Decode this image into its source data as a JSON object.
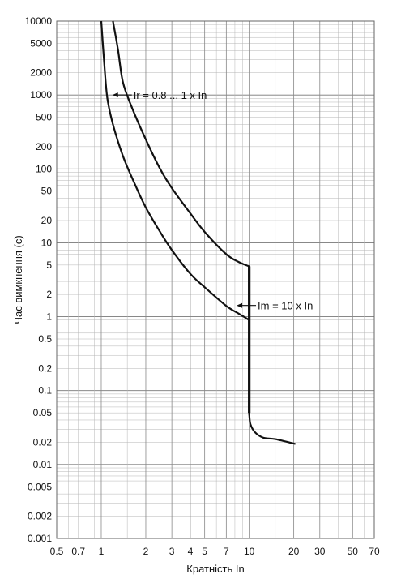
{
  "chart_data": {
    "type": "line",
    "title": "",
    "xlabel": "Кратність In",
    "ylabel": "Час вимкнення (с)",
    "x_scale": "log",
    "y_scale": "log",
    "xlim": [
      0.5,
      70
    ],
    "ylim": [
      0.001,
      10000
    ],
    "grid": true,
    "x_ticks": [
      {
        "value": 0.5,
        "label": "0.5"
      },
      {
        "value": 0.7,
        "label": "0.7"
      },
      {
        "value": 1,
        "label": "1"
      },
      {
        "value": 2,
        "label": "2"
      },
      {
        "value": 3,
        "label": "3"
      },
      {
        "value": 4,
        "label": "4"
      },
      {
        "value": 5,
        "label": "5"
      },
      {
        "value": 7,
        "label": "7"
      },
      {
        "value": 10,
        "label": "10"
      },
      {
        "value": 20,
        "label": "20"
      },
      {
        "value": 30,
        "label": "30"
      },
      {
        "value": 50,
        "label": "50"
      },
      {
        "value": 70,
        "label": "70"
      }
    ],
    "y_ticks": [
      {
        "value": 10000,
        "label": "10000"
      },
      {
        "value": 5000,
        "label": "5000"
      },
      {
        "value": 2000,
        "label": "2000"
      },
      {
        "value": 1000,
        "label": "1000"
      },
      {
        "value": 500,
        "label": "500"
      },
      {
        "value": 200,
        "label": "200"
      },
      {
        "value": 100,
        "label": "100"
      },
      {
        "value": 50,
        "label": "50"
      },
      {
        "value": 20,
        "label": "20"
      },
      {
        "value": 10,
        "label": "10"
      },
      {
        "value": 5,
        "label": "5"
      },
      {
        "value": 2,
        "label": "2"
      },
      {
        "value": 1,
        "label": "1"
      },
      {
        "value": 0.5,
        "label": "0.5"
      },
      {
        "value": 0.2,
        "label": "0.2"
      },
      {
        "value": 0.1,
        "label": "0.1"
      },
      {
        "value": 0.05,
        "label": "0.05"
      },
      {
        "value": 0.02,
        "label": "0.02"
      },
      {
        "value": 0.01,
        "label": "0.01"
      },
      {
        "value": 0.005,
        "label": "0.005"
      },
      {
        "value": 0.002,
        "label": "0.002"
      },
      {
        "value": 0.001,
        "label": "0.001"
      }
    ],
    "series": [
      {
        "id": "lower-boundary",
        "points": [
          [
            1.0,
            10000
          ],
          [
            1.05,
            2500
          ],
          [
            1.1,
            900
          ],
          [
            1.2,
            400
          ],
          [
            1.4,
            150
          ],
          [
            1.7,
            60
          ],
          [
            2.0,
            30
          ],
          [
            2.5,
            14
          ],
          [
            3.0,
            8
          ],
          [
            4.0,
            3.8
          ],
          [
            5.0,
            2.5
          ],
          [
            7.0,
            1.4
          ],
          [
            8.5,
            1.1
          ],
          [
            10.0,
            0.9
          ],
          [
            10.0,
            0.048
          ],
          [
            10.2,
            0.035
          ],
          [
            11.0,
            0.027
          ],
          [
            12.5,
            0.023
          ],
          [
            15.0,
            0.022
          ],
          [
            20.5,
            0.019
          ]
        ]
      },
      {
        "id": "upper-boundary",
        "points": [
          [
            1.2,
            10000
          ],
          [
            1.3,
            4000
          ],
          [
            1.4,
            1500
          ],
          [
            1.6,
            700
          ],
          [
            2.0,
            250
          ],
          [
            2.5,
            100
          ],
          [
            3.0,
            55
          ],
          [
            4.0,
            25
          ],
          [
            5.0,
            14
          ],
          [
            7.0,
            7
          ],
          [
            8.5,
            5.5
          ],
          [
            10.0,
            4.8
          ],
          [
            10.0,
            0.05
          ]
        ]
      }
    ],
    "annotations": [
      {
        "label": "Ir = 0.8 ... 1 x In",
        "x": 1.65,
        "y": 1000
      },
      {
        "label": "Im = 10 x In",
        "x": 11.4,
        "y": 1.42
      }
    ],
    "line_color": "#111111",
    "grid_color": "#b5b5b5"
  }
}
